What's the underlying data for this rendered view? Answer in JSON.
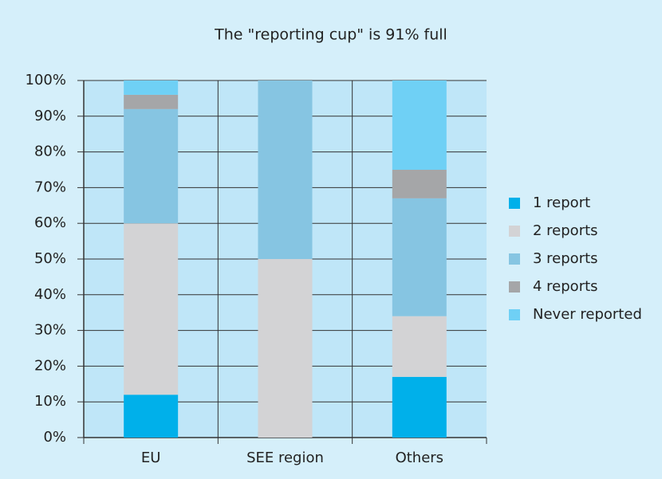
{
  "chart_data": {
    "type": "stacked_bar",
    "title": "The \"reporting cup\" is 91% full",
    "categories": [
      "EU",
      "SEE region",
      "Others"
    ],
    "series": [
      {
        "name": "1 report",
        "color": "#00b0ea",
        "values": [
          12,
          0,
          17
        ]
      },
      {
        "name": "2 reports",
        "color": "#d3d3d5",
        "values": [
          48,
          50,
          17
        ]
      },
      {
        "name": "3 reports",
        "color": "#86c5e2",
        "values": [
          32,
          50,
          33
        ]
      },
      {
        "name": "4 reports",
        "color": "#a5a6a8",
        "values": [
          4,
          0,
          8
        ]
      },
      {
        "name": "Never reported",
        "color": "#6fd0f5",
        "values": [
          4,
          0,
          25
        ]
      }
    ],
    "ylim": [
      0,
      100
    ],
    "yticks": [
      {
        "value": 0,
        "label": "0%"
      },
      {
        "value": 10,
        "label": "10%"
      },
      {
        "value": 20,
        "label": "20%"
      },
      {
        "value": 30,
        "label": "30%"
      },
      {
        "value": 40,
        "label": "40%"
      },
      {
        "value": 50,
        "label": "50%"
      },
      {
        "value": 60,
        "label": "60%"
      },
      {
        "value": 70,
        "label": "70%"
      },
      {
        "value": 80,
        "label": "80%"
      },
      {
        "value": 90,
        "label": "90%"
      },
      {
        "value": 100,
        "label": "100%"
      }
    ],
    "grid": true,
    "legend": "right"
  }
}
